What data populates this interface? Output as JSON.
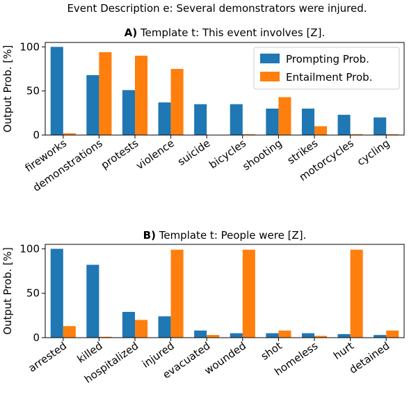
{
  "figure_title": "Event Description e: Several demonstrators were injured.",
  "colors": {
    "prompting": "#1f77b4",
    "entailment": "#ff7f0e"
  },
  "chart_data": [
    {
      "type": "bar",
      "panel_letter": "A)",
      "title": "Template t: This event involves [Z].",
      "ylabel": "Output Prob. [%]",
      "xlabel": "",
      "ylim": [
        0,
        105
      ],
      "yticks": [
        0,
        50,
        100
      ],
      "legend_position": "top-right",
      "categories": [
        "fireworks",
        "demonstrations",
        "protests",
        "violence",
        "suicide",
        "bicycles",
        "shooting",
        "strikes",
        "motorcycles",
        "cycling"
      ],
      "series": [
        {
          "name": "Prompting Prob.",
          "values": [
            100,
            68,
            51,
            37,
            35,
            35,
            30,
            30,
            23,
            20
          ]
        },
        {
          "name": "Entailment Prob.",
          "values": [
            2,
            94,
            90,
            75,
            0,
            1,
            43,
            10,
            1,
            1
          ]
        }
      ]
    },
    {
      "type": "bar",
      "panel_letter": "B)",
      "title": "Template t: People were [Z].",
      "ylabel": "Output Prob. [%]",
      "xlabel": "",
      "ylim": [
        0,
        105
      ],
      "yticks": [
        0,
        50,
        100
      ],
      "categories": [
        "arrested",
        "killed",
        "hospitalized",
        "injured",
        "evacuated",
        "wounded",
        "shot",
        "homeless",
        "hurt",
        "detained"
      ],
      "series": [
        {
          "name": "Prompting Prob.",
          "values": [
            100,
            82,
            29,
            24,
            8,
            5,
            5,
            5,
            4,
            3
          ]
        },
        {
          "name": "Entailment Prob.",
          "values": [
            13,
            1,
            20,
            99,
            3,
            99,
            8,
            2,
            99,
            8
          ]
        }
      ]
    }
  ]
}
